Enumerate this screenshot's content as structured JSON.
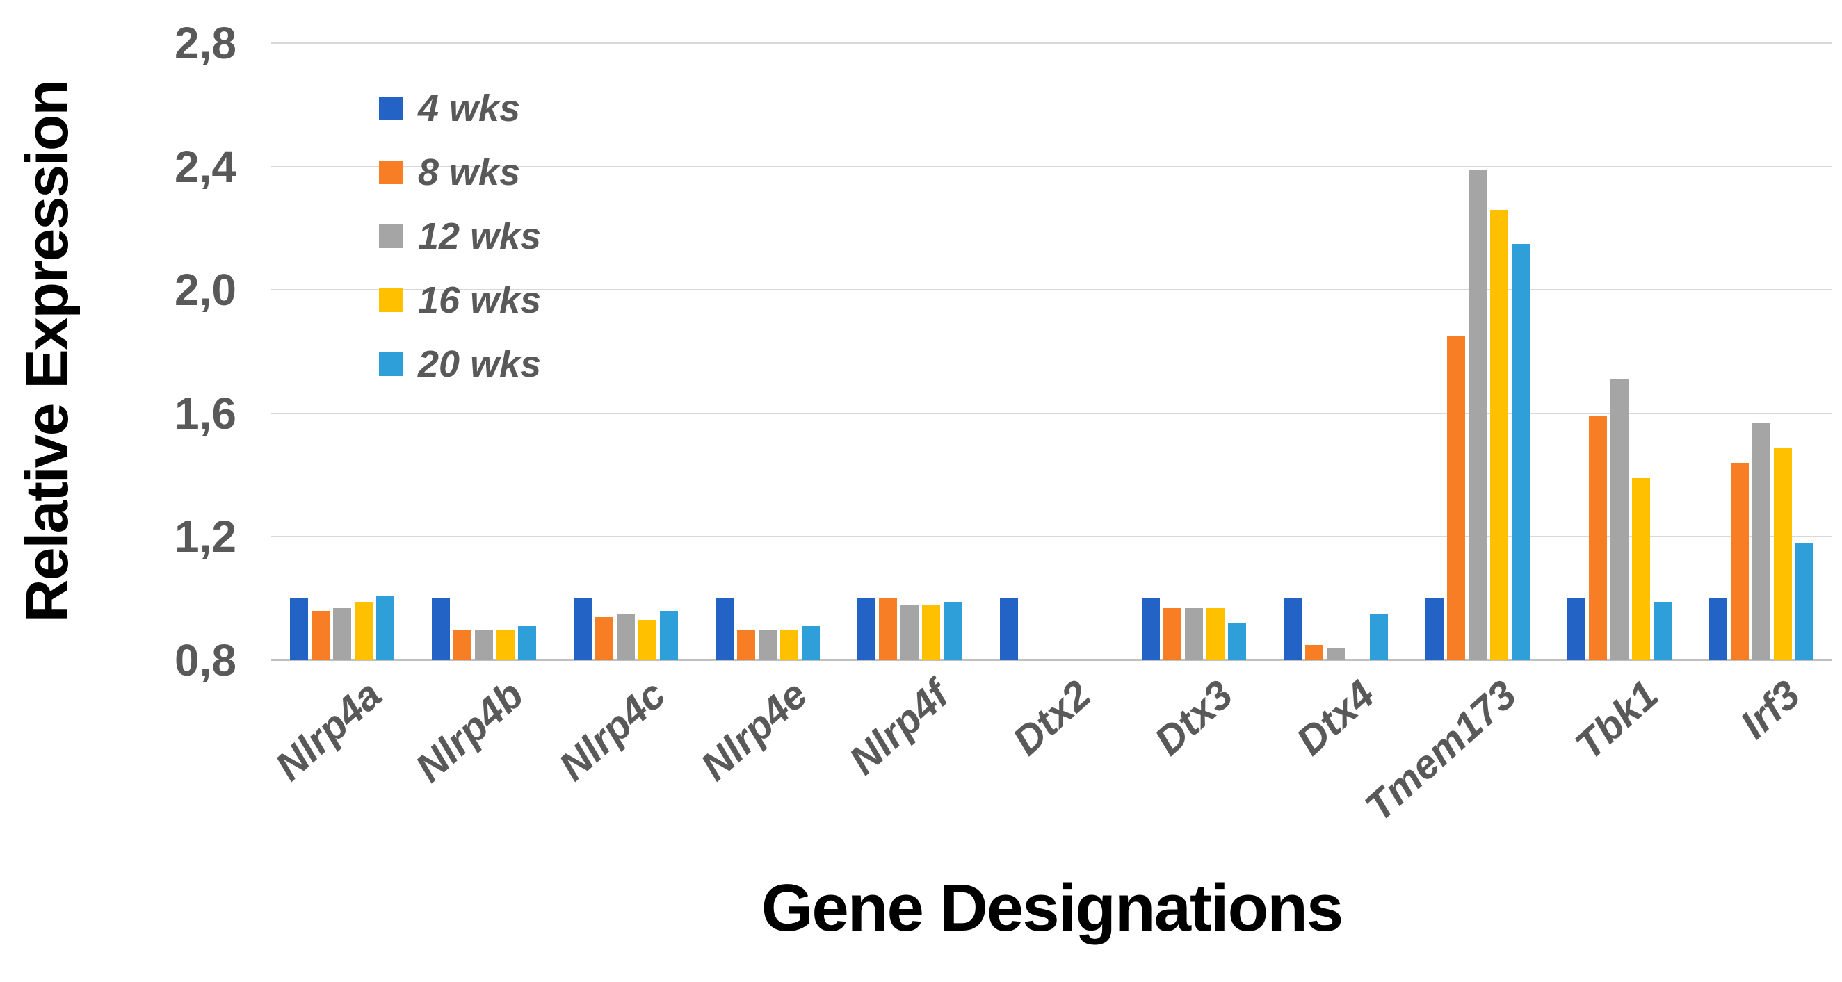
{
  "page": {
    "background": "#ffffff"
  },
  "chart_data": {
    "type": "bar",
    "title": "",
    "xlabel": "Gene Designations",
    "ylabel": "Relative Expression",
    "ylim": [
      0.8,
      2.8
    ],
    "ytick_step": 0.4,
    "ytick_labels": [
      "0,8",
      "1,2",
      "1,6",
      "2,0",
      "2,4",
      "2,8"
    ],
    "decimal_separator": ",",
    "grid": true,
    "legend_position": "inside-top-left",
    "categories": [
      "Nlrp4a",
      "Nlrp4b",
      "Nlrp4c",
      "Nlrp4e",
      "Nlrp4f",
      "Dtx2",
      "Dtx3",
      "Dtx4",
      "Tmem173",
      "Tbk1",
      "Irf3"
    ],
    "series": [
      {
        "name": "4 wks",
        "color": "#2363C5",
        "values": [
          1.0,
          1.0,
          1.0,
          1.0,
          1.0,
          1.0,
          1.0,
          1.0,
          1.0,
          1.0,
          1.0
        ]
      },
      {
        "name": "8 wks",
        "color": "#F87E26",
        "values": [
          0.96,
          0.9,
          0.94,
          0.9,
          1.0,
          null,
          0.97,
          0.85,
          1.85,
          1.59,
          1.44
        ]
      },
      {
        "name": "12 wks",
        "color": "#A5A5A5",
        "values": [
          0.97,
          0.9,
          0.95,
          0.9,
          0.98,
          null,
          0.97,
          0.84,
          2.39,
          1.71,
          1.57
        ]
      },
      {
        "name": "16 wks",
        "color": "#FFC000",
        "values": [
          0.99,
          0.9,
          0.93,
          0.9,
          0.98,
          null,
          0.97,
          null,
          2.26,
          1.39,
          1.49
        ]
      },
      {
        "name": "20 wks",
        "color": "#2E9FD9",
        "values": [
          1.01,
          0.91,
          0.96,
          0.91,
          0.99,
          null,
          0.92,
          0.95,
          2.15,
          0.99,
          1.18
        ]
      }
    ],
    "colors": {
      "axis_text": "#595959",
      "grid_line": "#d8d8d8",
      "baseline": "#c0c0c0",
      "title_text": "#000000"
    }
  }
}
